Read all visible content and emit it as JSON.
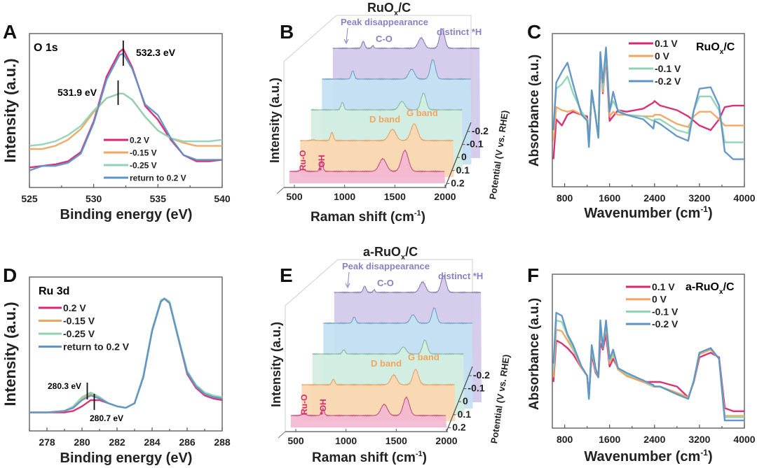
{
  "chart_data": [
    {
      "panel": "A",
      "type": "line",
      "title": "O 1s",
      "xlabel": "Binding energy (eV)",
      "ylabel": "Intensity (a.u.)",
      "xlim": [
        525,
        540
      ],
      "ylim": [
        0,
        100
      ],
      "xticks": [
        525,
        530,
        535,
        540
      ],
      "grid": false,
      "legend_position": "bottom-center",
      "x": [
        525,
        526,
        527,
        528,
        529,
        530,
        531,
        532,
        532.3,
        533,
        534,
        535,
        536,
        537,
        538,
        539,
        540
      ],
      "series": [
        {
          "name": "0.2 V",
          "color": "#d6286f",
          "values": [
            13,
            14,
            15,
            17,
            23,
            43,
            72,
            88,
            90,
            78,
            53,
            44,
            31,
            21,
            17,
            17,
            18
          ]
        },
        {
          "name": "-0.15 V",
          "color": "#f0a560",
          "values": [
            25,
            25,
            27,
            31,
            38,
            49,
            58,
            61,
            61,
            57,
            46,
            37,
            32,
            29,
            27,
            27,
            27
          ]
        },
        {
          "name": "-0.25 V",
          "color": "#8fd3b4",
          "values": [
            27,
            28,
            30,
            34,
            40,
            50,
            58,
            61,
            61,
            57,
            46,
            37,
            32,
            30,
            30,
            30,
            31
          ]
        },
        {
          "name": "return to 0.2 V",
          "color": "#5e93c6",
          "values": [
            11,
            14,
            14,
            16,
            22,
            42,
            70,
            86,
            87,
            77,
            54,
            47,
            32,
            21,
            18,
            18,
            18
          ]
        }
      ],
      "annotations": [
        {
          "text": "532.3 eV",
          "x": 532.3
        },
        {
          "text": "531.9 eV",
          "x": 531.9
        }
      ]
    },
    {
      "panel": "B",
      "type": "line",
      "subtype": "waterfall",
      "title": {
        "main": "RuO",
        "sub": "x",
        "rest": "/C"
      },
      "xlabel": {
        "main": "Raman shift (cm",
        "sup": "-1",
        "rest": ")"
      },
      "ylabel": "Intensity (a.u.)",
      "zlabel": "Potential (V vs. RHE)",
      "xlim": [
        400,
        2000
      ],
      "xticks": [
        500,
        1000,
        1500,
        2000
      ],
      "zticks": [
        "0.2",
        "0.1",
        "0",
        "-0.1",
        "-0.2"
      ],
      "series": [
        {
          "name": "0.2",
          "fill": "#f3b9d2",
          "line": "#c0507f",
          "peaks": [
            [
              580,
              3,
              22
            ],
            [
              770,
              14,
              14
            ],
            [
              1380,
              18,
              35
            ],
            [
              1600,
              30,
              34
            ]
          ]
        },
        {
          "name": "0.1",
          "fill": "#fcd7b0",
          "line": "#e3a064",
          "peaks": [
            [
              580,
              1,
              22
            ],
            [
              770,
              12,
              14
            ],
            [
              1380,
              16,
              35
            ],
            [
              1600,
              24,
              34
            ]
          ]
        },
        {
          "name": "0",
          "fill": "#d3eedf",
          "line": "#86b9a3",
          "peaks": [
            [
              770,
              11,
              14
            ],
            [
              1380,
              12,
              30
            ],
            [
              1600,
              24,
              26
            ]
          ]
        },
        {
          "name": "-0.1",
          "fill": "#c3e2f3",
          "line": "#6f9fc6",
          "peaks": [
            [
              770,
              12,
              15
            ],
            [
              1380,
              14,
              30
            ],
            [
              1600,
              28,
              26
            ]
          ]
        },
        {
          "name": "-0.2",
          "fill": "#d3c9ea",
          "line": "#857db2",
          "peaks": [
            [
              770,
              10,
              15
            ],
            [
              870,
              4,
              10
            ],
            [
              1380,
              15,
              30
            ],
            [
              1600,
              28,
              26
            ]
          ]
        }
      ],
      "annotations": {
        "peak_disappearance": "Peak disappearance",
        "c_o": "C-O",
        "distinct_h": "distinct *H",
        "d_band": "D band",
        "g_band": "G band",
        "ru_o": "Ru-O",
        "oh": "*OH"
      }
    },
    {
      "panel": "C",
      "type": "line",
      "title": {
        "main": "RuO",
        "sub": "x",
        "rest": "/C"
      },
      "xlabel": {
        "main": "Wavenumber (cm",
        "sup": "-1",
        "rest": ")"
      },
      "ylabel": "Absorbance (a.u.)",
      "xlim": [
        580,
        4000
      ],
      "ylim": [
        0,
        100
      ],
      "xticks": [
        800,
        1600,
        2400,
        3200,
        4000
      ],
      "grid": false,
      "legend_position": "top-right",
      "x": [
        600,
        650,
        750,
        850,
        950,
        1100,
        1200,
        1232,
        1282,
        1350,
        1400,
        1435,
        1480,
        1536,
        1600,
        1663,
        1750,
        1900,
        2200,
        2380,
        2400,
        2500,
        2800,
        3000,
        3100,
        3200,
        3400,
        3550,
        3650,
        3800,
        4000
      ],
      "series": [
        {
          "name": "0.1 V",
          "color": "#d6286f",
          "values": [
            18,
            44,
            40,
            47,
            49,
            47,
            46,
            29,
            61,
            46,
            32,
            82,
            61,
            85,
            43,
            46,
            50,
            49,
            51,
            55,
            56,
            53,
            50,
            46,
            43,
            40,
            37,
            44,
            52,
            53,
            53
          ]
        },
        {
          "name": "0 V",
          "color": "#f0a560",
          "values": [
            30,
            52,
            50,
            49,
            50,
            47,
            44,
            32,
            61,
            46,
            32,
            84,
            62,
            87,
            46,
            49,
            47,
            47,
            46,
            46,
            47,
            47,
            41,
            39,
            46,
            49,
            49,
            44,
            40,
            40,
            40
          ]
        },
        {
          "name": "-0.1 V",
          "color": "#8fd3b4",
          "values": [
            40,
            64,
            67,
            72,
            61,
            49,
            44,
            26,
            62,
            46,
            32,
            85,
            64,
            89,
            50,
            56,
            50,
            47,
            46,
            43,
            44,
            44,
            37,
            35,
            50,
            59,
            59,
            50,
            29,
            29,
            29
          ]
        },
        {
          "name": "-0.2 V",
          "color": "#5e93c6",
          "values": [
            37,
            68,
            75,
            81,
            67,
            47,
            43,
            26,
            63,
            46,
            32,
            88,
            68,
            91,
            49,
            62,
            49,
            47,
            44,
            38,
            43,
            41,
            33,
            30,
            50,
            64,
            65,
            53,
            23,
            18,
            18
          ]
        }
      ]
    },
    {
      "panel": "D",
      "type": "line",
      "title": "Ru 3d",
      "xlabel": "Binding energy (eV)",
      "ylabel": "Intensity (a.u.)",
      "xlim": [
        277,
        288
      ],
      "ylim": [
        0,
        100
      ],
      "xticks": [
        278,
        280,
        282,
        284,
        286,
        288
      ],
      "grid": false,
      "legend_position": "top-left",
      "x": [
        277,
        278,
        279,
        279.5,
        280,
        280.5,
        281,
        281.5,
        282,
        282.5,
        283,
        283.5,
        284,
        284.5,
        284.7,
        285,
        285.5,
        286,
        286.5,
        287,
        287.5,
        288
      ],
      "series": [
        {
          "name": "0.2 V",
          "color": "#d6286f",
          "values": [
            12,
            12,
            12,
            13,
            16,
            20,
            20,
            18,
            16,
            15,
            18,
            35,
            65,
            84,
            86,
            83,
            60,
            37,
            28,
            23,
            21,
            20
          ]
        },
        {
          "name": "-0.15 V",
          "color": "#f0a560",
          "values": [
            12,
            12,
            13,
            15,
            21,
            24,
            22,
            18,
            16,
            15,
            18,
            35,
            65,
            84,
            86,
            83,
            60,
            38,
            29,
            24,
            22,
            21
          ]
        },
        {
          "name": "-0.25 V",
          "color": "#8fd3b4",
          "values": [
            12,
            12,
            13,
            16,
            22,
            25,
            22,
            18,
            16,
            15,
            18,
            36,
            66,
            85,
            86,
            84,
            61,
            39,
            30,
            25,
            23,
            22
          ]
        },
        {
          "name": "return to 0.2 V",
          "color": "#5e93c6",
          "values": [
            12,
            12,
            13,
            15,
            20,
            23,
            21,
            18,
            16,
            15,
            18,
            35,
            65,
            84,
            86,
            83,
            60,
            38,
            29,
            24,
            22,
            21
          ]
        }
      ],
      "annotations": [
        {
          "text": "280.3 eV",
          "x": 280.3
        },
        {
          "text": "280.7 eV",
          "x": 280.7
        }
      ]
    },
    {
      "panel": "E",
      "type": "line",
      "subtype": "waterfall",
      "title": {
        "main": "a-RuO",
        "sub": "x",
        "rest": "/C"
      },
      "xlabel": {
        "main": "Raman shift (cm",
        "sup": "-1",
        "rest": ")"
      },
      "ylabel": "Intensity (a.u.)",
      "zlabel": "Potential (V vs. RHE)",
      "xlim": [
        400,
        2000
      ],
      "xticks": [
        500,
        1000,
        1500,
        2000
      ],
      "zticks": [
        "0.2",
        "0.1",
        "0",
        "-0.1",
        "-0.2"
      ],
      "series": [
        {
          "name": "0.2",
          "fill": "#f3b9d2",
          "line": "#c0507f",
          "peaks": [
            [
              580,
              2,
              22
            ],
            [
              770,
              10,
              14
            ],
            [
              1380,
              16,
              32
            ],
            [
              1600,
              26,
              30
            ]
          ]
        },
        {
          "name": "0.1",
          "fill": "#fcd7b0",
          "line": "#e3a064",
          "peaks": [
            [
              770,
              8,
              14
            ],
            [
              1380,
              14,
              30
            ],
            [
              1600,
              22,
              28
            ]
          ]
        },
        {
          "name": "0",
          "fill": "#d3eedf",
          "line": "#86b9a3",
          "peaks": [
            [
              770,
              6,
              14
            ],
            [
              1380,
              10,
              28
            ],
            [
              1600,
              20,
              24
            ]
          ]
        },
        {
          "name": "-0.1",
          "fill": "#c3e2f3",
          "line": "#6f9fc6",
          "peaks": [
            [
              770,
              9,
              15
            ],
            [
              1380,
              12,
              28
            ],
            [
              1600,
              22,
              24
            ]
          ]
        },
        {
          "name": "-0.2",
          "fill": "#d3c9ea",
          "line": "#857db2",
          "peaks": [
            [
              770,
              9,
              15
            ],
            [
              870,
              4,
              10
            ],
            [
              1380,
              15,
              30
            ],
            [
              1600,
              24,
              26
            ]
          ]
        }
      ],
      "annotations": {
        "peak_disappearance": "Peak disappearance",
        "c_o": "C-O",
        "distinct_h": "distinct *H",
        "d_band": "D band",
        "g_band": "G band",
        "ru_o": "Ru-O",
        "oh": "*OH"
      }
    },
    {
      "panel": "F",
      "type": "line",
      "title": {
        "main": "a-RuO",
        "sub": "x",
        "rest": "/C"
      },
      "xlabel": {
        "main": "Wavenumber (cm",
        "sup": "-1",
        "rest": ")"
      },
      "ylabel": "Absorbance (a.u.)",
      "xlim": [
        580,
        4000
      ],
      "ylim": [
        0,
        100
      ],
      "xticks": [
        800,
        1600,
        2400,
        3200,
        4000
      ],
      "grid": false,
      "legend_position": "top-right",
      "x": [
        600,
        650,
        750,
        850,
        950,
        1100,
        1200,
        1232,
        1282,
        1350,
        1400,
        1435,
        1480,
        1536,
        1600,
        1663,
        1750,
        1900,
        2200,
        2380,
        2400,
        2500,
        2800,
        3000,
        3100,
        3200,
        3400,
        3550,
        3650,
        3800,
        4000
      ],
      "series": [
        {
          "name": "0.1 V",
          "color": "#d6286f",
          "values": [
            30,
            57,
            55,
            52,
            48,
            39,
            34,
            20,
            48,
            36,
            33,
            55,
            51,
            61,
            40,
            45,
            39,
            34,
            30,
            30,
            30,
            30,
            27,
            20,
            30,
            46,
            49,
            46,
            13,
            11,
            11
          ]
        },
        {
          "name": "0 V",
          "color": "#f0a560",
          "values": [
            33,
            64,
            63,
            57,
            51,
            39,
            34,
            20,
            51,
            37,
            33,
            63,
            52,
            66,
            42,
            48,
            38,
            34,
            30,
            27,
            27,
            27,
            23,
            20,
            30,
            48,
            51,
            45,
            8,
            8,
            8
          ]
        },
        {
          "name": "-0.1 V",
          "color": "#8fd3b4",
          "values": [
            37,
            70,
            69,
            60,
            52,
            40,
            34,
            19,
            52,
            38,
            33,
            67,
            52,
            69,
            44,
            49,
            39,
            35,
            31,
            27,
            27,
            27,
            22,
            19,
            31,
            49,
            52,
            45,
            7,
            7,
            7
          ]
        },
        {
          "name": "-0.2 V",
          "color": "#5e93c6",
          "values": [
            42,
            75,
            73,
            61,
            54,
            40,
            34,
            19,
            54,
            39,
            33,
            70,
            52,
            70,
            45,
            51,
            39,
            36,
            31,
            28,
            27,
            27,
            22,
            19,
            31,
            49,
            52,
            45,
            5,
            5,
            5
          ]
        }
      ]
    }
  ]
}
